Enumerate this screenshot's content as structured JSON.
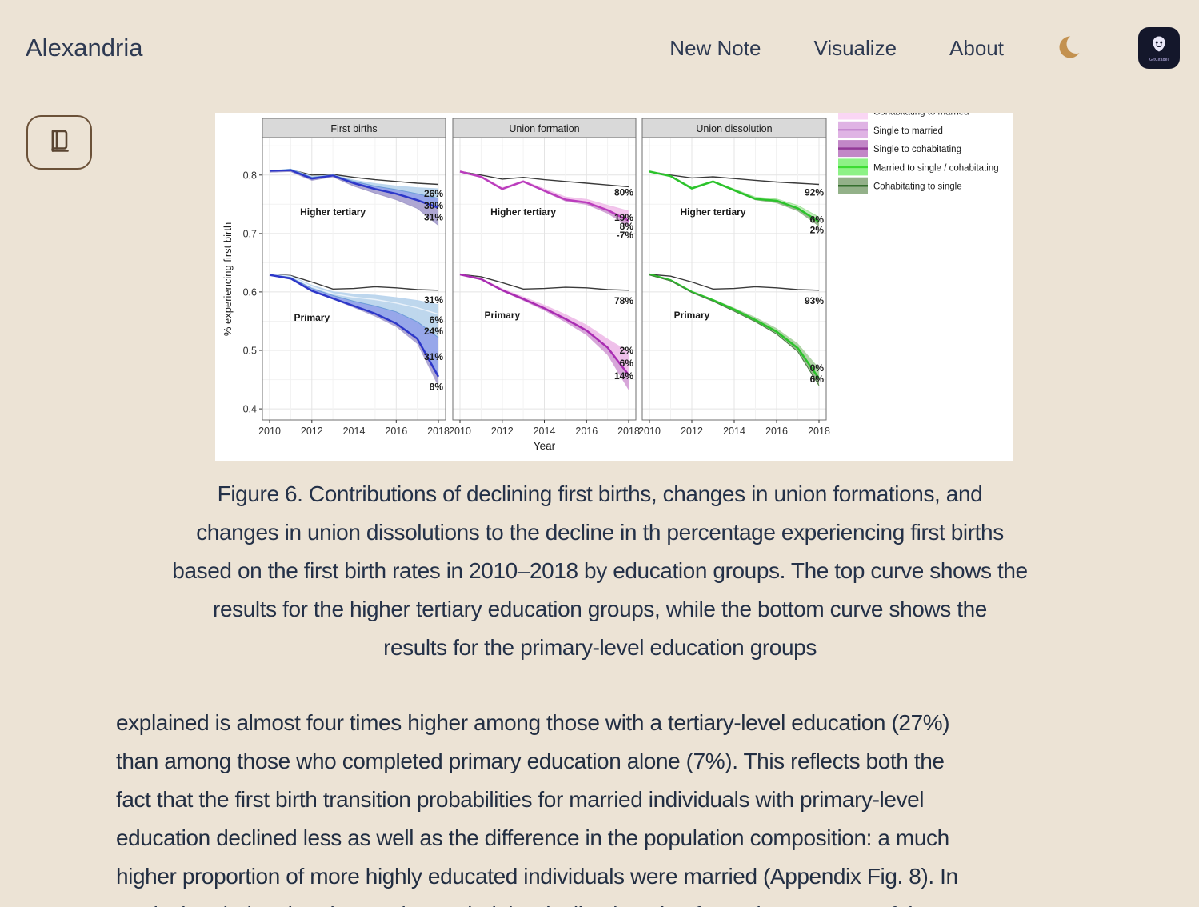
{
  "header": {
    "app_title": "Alexandria",
    "nav": [
      {
        "label": "New Note"
      },
      {
        "label": "Visualize"
      },
      {
        "label": "About"
      }
    ],
    "theme_toggle_icon": "moon-icon",
    "app_badge_text": "GitCitadel",
    "moon_color": "#c3914f"
  },
  "reader_button": {
    "icon": "book-icon",
    "border_color": "#6b5138"
  },
  "chart_data": {
    "type": "line",
    "xlabel": "Year",
    "ylabel": "% experiencing first birth",
    "years": [
      2010,
      2011,
      2012,
      2013,
      2014,
      2015,
      2016,
      2017,
      2018
    ],
    "xticks": [
      2010,
      2012,
      2014,
      2016,
      2018
    ],
    "yticks": [
      0.4,
      0.5,
      0.6,
      0.7,
      0.8
    ],
    "ylim": [
      0.381,
      0.864
    ],
    "grid": true,
    "style": {
      "panel_header_fill": "#d9d9d9",
      "panel_border": "#6f6f6f",
      "reference_line": "#3a3a3a",
      "grid_major": "#e4e4e4",
      "grid_minor": "#f2f2f2",
      "tick_color": "#333333",
      "text_color": "#1a1a1a"
    },
    "legend": {
      "position": "top-right",
      "first_item_clipped": true,
      "items": [
        {
          "label": "Cohabitating to married",
          "fill": "#fad6f4",
          "line": "#efb3e7"
        },
        {
          "label": "Single to married",
          "fill": "#dfb3e4",
          "line": "#c68ad0"
        },
        {
          "label": "Single to cohabitating",
          "fill": "#c287c7",
          "line": "#933a97"
        },
        {
          "label": "Married to single / cohabitating",
          "fill": "#8df286",
          "line": "#3cdc33"
        },
        {
          "label": "Cohabitating to single",
          "fill": "#93b189",
          "line": "#356f2e"
        }
      ]
    },
    "panels": [
      {
        "title": "First births",
        "groups": [
          {
            "label": "Higher tertiary",
            "label_at": [
              2013,
              0.737
            ],
            "reference": [
              0.807,
              0.809,
              0.8,
              0.801,
              0.796,
              0.792,
              0.789,
              0.786,
              0.784
            ],
            "layers": [
              {
                "values": [
                  0.807,
                  0.81,
                  0.797,
                  0.8,
                  0.791,
                  0.785,
                  0.781,
                  0.778,
                  0.776
                ],
                "line": "#bcd6ee",
                "lw": 1.5,
                "fill": "none"
              },
              {
                "values": [
                  0.807,
                  0.81,
                  0.796,
                  0.8,
                  0.789,
                  0.781,
                  0.775,
                  0.768,
                  0.76
                ],
                "line": "#6b9bd8",
                "lw": 1,
                "fill": "#b9d4ec"
              },
              {
                "values": [
                  0.806,
                  0.808,
                  0.794,
                  0.799,
                  0.786,
                  0.776,
                  0.768,
                  0.757,
                  0.744
                ],
                "line": "#2d37c9",
                "lw": 2.5,
                "fill": "#8e9fe8"
              },
              {
                "values": [
                  0.805,
                  0.806,
                  0.791,
                  0.797,
                  0.781,
                  0.769,
                  0.758,
                  0.743,
                  0.714
                ],
                "line": "#a29ac9",
                "lw": 1,
                "fill": "#a7a0cf"
              }
            ],
            "annotations": [
              {
                "text": "26%",
                "y": 0.768
              },
              {
                "text": "30%",
                "y": 0.748
              },
              {
                "text": "31%",
                "y": 0.728
              }
            ]
          },
          {
            "label": "Primary",
            "label_at": [
              2012,
              0.556
            ],
            "reference": [
              0.63,
              0.628,
              0.617,
              0.605,
              0.606,
              0.609,
              0.607,
              0.604,
              0.603
            ],
            "layers": [
              {
                "values": [
                  0.63,
                  0.627,
                  0.611,
                  0.6,
                  0.596,
                  0.594,
                  0.59,
                  0.585,
                  0.578
                ],
                "line": "#bcd6ee",
                "lw": 1.5,
                "fill": "none"
              },
              {
                "values": [
                  0.63,
                  0.626,
                  0.609,
                  0.597,
                  0.591,
                  0.587,
                  0.581,
                  0.573,
                  0.562
                ],
                "line": "#eaf2fa",
                "lw": 1.5,
                "fill": "#b9d4ec"
              },
              {
                "values": [
                  0.63,
                  0.625,
                  0.606,
                  0.594,
                  0.584,
                  0.576,
                  0.566,
                  0.549,
                  0.522
                ],
                "line": "#6b9bd8",
                "lw": 1,
                "fill": "#b9d4ec"
              },
              {
                "values": [
                  0.629,
                  0.623,
                  0.602,
                  0.589,
                  0.576,
                  0.563,
                  0.546,
                  0.52,
                  0.455
                ],
                "line": "#2d37c9",
                "lw": 2.5,
                "fill": "#8e9fe8"
              },
              {
                "values": [
                  0.628,
                  0.621,
                  0.6,
                  0.587,
                  0.573,
                  0.558,
                  0.54,
                  0.511,
                  0.438
                ],
                "line": "none",
                "lw": 0,
                "fill": "#a7a0cf"
              }
            ],
            "annotations": [
              {
                "text": "31%",
                "y": 0.586
              },
              {
                "text": "6%",
                "y": 0.552
              },
              {
                "text": "24%",
                "y": 0.533
              },
              {
                "text": "31%",
                "y": 0.489
              },
              {
                "text": "8%",
                "y": 0.438
              }
            ]
          }
        ]
      },
      {
        "title": "Union formation",
        "groups": [
          {
            "label": "Higher tertiary",
            "label_at": [
              2013,
              0.737
            ],
            "reference": [
              0.806,
              0.8,
              0.793,
              0.796,
              0.792,
              0.789,
              0.786,
              0.783,
              0.78
            ],
            "layers": [
              {
                "values": [
                  0.806,
                  0.798,
                  0.778,
                  0.79,
                  0.776,
                  0.762,
                  0.758,
                  0.748,
                  0.738
                ],
                "line": "#f0c2ea",
                "lw": 1.5,
                "fill": "none"
              },
              {
                "values": [
                  0.806,
                  0.797,
                  0.776,
                  0.789,
                  0.773,
                  0.758,
                  0.753,
                  0.74,
                  0.722
                ],
                "line": "#bb3dbd",
                "lw": 2.5,
                "fill": "#f3c1ec"
              },
              {
                "values": [
                  0.805,
                  0.796,
                  0.775,
                  0.788,
                  0.771,
                  0.755,
                  0.749,
                  0.734,
                  0.712
                ],
                "line": "none",
                "lw": 0,
                "fill": "#cf9ed2"
              }
            ],
            "annotations": [
              {
                "text": "80%",
                "y": 0.77
              },
              {
                "text": "19%",
                "y": 0.727
              },
              {
                "text": "8%",
                "y": 0.712
              },
              {
                "text": "-7%",
                "y": 0.697
              }
            ]
          },
          {
            "label": "Primary",
            "label_at": [
              2012,
              0.56
            ],
            "reference": [
              0.63,
              0.626,
              0.616,
              0.605,
              0.606,
              0.608,
              0.607,
              0.604,
              0.603
            ],
            "layers": [
              {
                "values": [
                  0.63,
                  0.623,
                  0.605,
                  0.591,
                  0.577,
                  0.561,
                  0.543,
                  0.519,
                  0.497
                ],
                "line": "#f0c2ea",
                "lw": 1.5,
                "fill": "none"
              },
              {
                "values": [
                  0.63,
                  0.622,
                  0.603,
                  0.588,
                  0.572,
                  0.554,
                  0.534,
                  0.505,
                  0.458
                ],
                "line": "#a92cb2",
                "lw": 2.5,
                "fill": "#eebbe8"
              },
              {
                "values": [
                  0.629,
                  0.62,
                  0.601,
                  0.585,
                  0.568,
                  0.548,
                  0.526,
                  0.492,
                  0.432
                ],
                "line": "none",
                "lw": 0,
                "fill": "#d49ed6"
              }
            ],
            "annotations": [
              {
                "text": "78%",
                "y": 0.585
              },
              {
                "text": "2%",
                "y": 0.5
              },
              {
                "text": "6%",
                "y": 0.478
              },
              {
                "text": "14%",
                "y": 0.456
              }
            ]
          }
        ]
      },
      {
        "title": "Union dissolution",
        "groups": [
          {
            "label": "Higher tertiary",
            "label_at": [
              2013,
              0.737
            ],
            "reference": [
              0.806,
              0.8,
              0.795,
              0.797,
              0.794,
              0.791,
              0.788,
              0.786,
              0.784
            ],
            "layers": [
              {
                "values": [
                  0.806,
                  0.799,
                  0.779,
                  0.79,
                  0.776,
                  0.762,
                  0.759,
                  0.748,
                  0.728
                ],
                "line": "#a6e49e",
                "lw": 1,
                "fill": "none"
              },
              {
                "values": [
                  0.806,
                  0.798,
                  0.777,
                  0.789,
                  0.774,
                  0.759,
                  0.756,
                  0.743,
                  0.72
                ],
                "line": "#2bc32b",
                "lw": 2.5,
                "fill": "#bce8b5"
              },
              {
                "values": [
                  0.805,
                  0.797,
                  0.776,
                  0.788,
                  0.772,
                  0.757,
                  0.752,
                  0.738,
                  0.712
                ],
                "line": "none",
                "lw": 0,
                "fill": "#90b287"
              }
            ],
            "annotations": [
              {
                "text": "92%",
                "y": 0.77
              },
              {
                "text": "6%",
                "y": 0.724
              },
              {
                "text": "2%",
                "y": 0.706
              }
            ]
          },
          {
            "label": "Primary",
            "label_at": [
              2012,
              0.56
            ],
            "reference": [
              0.63,
              0.627,
              0.617,
              0.605,
              0.606,
              0.609,
              0.607,
              0.604,
              0.603
            ],
            "layers": [
              {
                "values": [
                  0.63,
                  0.621,
                  0.602,
                  0.588,
                  0.573,
                  0.557,
                  0.538,
                  0.512,
                  0.47
                ],
                "line": "none",
                "lw": 0,
                "fill": "none"
              },
              {
                "values": [
                  0.63,
                  0.62,
                  0.6,
                  0.586,
                  0.57,
                  0.552,
                  0.532,
                  0.504,
                  0.452
                ],
                "line": "#2bc32b",
                "lw": 2.5,
                "fill": "#a9d0a0"
              },
              {
                "values": [
                  0.629,
                  0.619,
                  0.599,
                  0.584,
                  0.567,
                  0.549,
                  0.528,
                  0.498,
                  0.44
                ],
                "line": "#4a7a42",
                "lw": 1,
                "fill": "#90b287"
              }
            ],
            "annotations": [
              {
                "text": "93%",
                "y": 0.585
              },
              {
                "text": "0%",
                "y": 0.47
              },
              {
                "text": "6%",
                "y": 0.451
              }
            ]
          }
        ]
      }
    ]
  },
  "caption_lines": [
    "Figure 6. Contributions of declining first births, changes in union formations, and",
    "changes in union dissolutions to the decline in th percentage experiencing first births",
    "based on the first birth rates in 2010–2018 by education groups. The top curve shows the",
    "results for the higher tertiary education groups, while the bottom curve shows the",
    "results for the primary-level education groups"
  ],
  "body_lines": [
    "explained is almost four times higher among those with a tertiary-level education (27%)",
    "than among those who completed primary education alone (7%). This reflects both the",
    "fact that the first birth transition probabilities for married individuals with primary-level",
    "education declined less as well as the difference in the population composition: a much",
    "higher proportion of more highly educated individuals were married (Appendix Fig. 8). In",
    "particular, during the observation period the decline in union formation was one of the"
  ]
}
